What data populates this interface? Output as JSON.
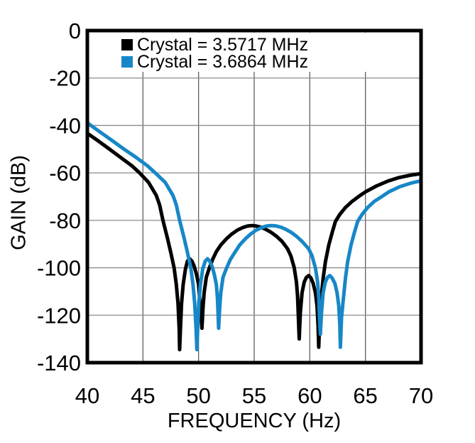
{
  "colors": {
    "background": "#ffffff",
    "frame": "#000000",
    "grid_vertical": "#5f5f5f",
    "grid_horizontal": "#8c8c8c",
    "series_black": "#000000",
    "series_blue": "#1787C7"
  },
  "chart_data": {
    "type": "line",
    "title": "",
    "xlabel": "FREQUENCY (Hz)",
    "ylabel": "GAIN (dB)",
    "xlim": [
      40,
      70
    ],
    "ylim": [
      -140,
      0
    ],
    "xticks": [
      40,
      45,
      50,
      55,
      60,
      65,
      70
    ],
    "yticks": [
      0,
      -20,
      -40,
      -60,
      -80,
      -100,
      -120,
      -140
    ],
    "grid": true,
    "legend_position": "top-left",
    "series": [
      {
        "name": "Crystal = 3.5717 MHz",
        "color": "#000000",
        "points": [
          [
            40.0,
            -43.3
          ],
          [
            41.0,
            -46.6
          ],
          [
            42.0,
            -50.0
          ],
          [
            43.0,
            -53.5
          ],
          [
            44.0,
            -57.0
          ],
          [
            44.7,
            -60.0
          ],
          [
            45.5,
            -64.0
          ],
          [
            46.2,
            -69.5
          ],
          [
            46.5,
            -73.5
          ],
          [
            46.8,
            -80.0
          ],
          [
            47.2,
            -87.5
          ],
          [
            47.5,
            -93.5
          ],
          [
            47.8,
            -100.0
          ],
          [
            48.0,
            -107.0
          ],
          [
            48.15,
            -115.0
          ],
          [
            48.26,
            -126.0
          ],
          [
            48.3,
            -134.5
          ],
          [
            48.37,
            -126.0
          ],
          [
            48.47,
            -115.0
          ],
          [
            48.62,
            -107.0
          ],
          [
            48.82,
            -100.5
          ],
          [
            49.0,
            -97.2
          ],
          [
            49.2,
            -96.2
          ],
          [
            49.4,
            -97.2
          ],
          [
            49.6,
            -99.3
          ],
          [
            49.8,
            -102.5
          ],
          [
            50.0,
            -107.0
          ],
          [
            50.1,
            -113.0
          ],
          [
            50.24,
            -120.0
          ],
          [
            50.3,
            -125.5
          ],
          [
            50.4,
            -117.0
          ],
          [
            50.5,
            -110.5
          ],
          [
            50.7,
            -104.0
          ],
          [
            50.95,
            -100.3
          ],
          [
            51.25,
            -96.6
          ],
          [
            51.6,
            -93.2
          ],
          [
            52.0,
            -90.4
          ],
          [
            52.5,
            -87.8
          ],
          [
            53.0,
            -85.7
          ],
          [
            53.5,
            -84.1
          ],
          [
            54.0,
            -83.0
          ],
          [
            54.4,
            -82.4
          ],
          [
            54.8,
            -82.2
          ],
          [
            55.2,
            -82.4
          ],
          [
            55.6,
            -82.9
          ],
          [
            56.0,
            -83.7
          ],
          [
            56.5,
            -85.0
          ],
          [
            57.0,
            -86.7
          ],
          [
            57.5,
            -88.9
          ],
          [
            58.0,
            -92.0
          ],
          [
            58.3,
            -95.0
          ],
          [
            58.6,
            -100.0
          ],
          [
            58.8,
            -106.0
          ],
          [
            58.9,
            -112.0
          ],
          [
            58.98,
            -122.0
          ],
          [
            59.05,
            -130.0
          ],
          [
            59.15,
            -119.0
          ],
          [
            59.3,
            -110.5
          ],
          [
            59.5,
            -106.0
          ],
          [
            59.7,
            -104.0
          ],
          [
            59.9,
            -103.3
          ],
          [
            60.1,
            -104.3
          ],
          [
            60.3,
            -106.5
          ],
          [
            60.5,
            -110.5
          ],
          [
            60.65,
            -116.0
          ],
          [
            60.74,
            -124.0
          ],
          [
            60.8,
            -133.5
          ],
          [
            60.9,
            -121.0
          ],
          [
            61.0,
            -114.0
          ],
          [
            61.2,
            -104.5
          ],
          [
            61.4,
            -97.5
          ],
          [
            61.7,
            -90.5
          ],
          [
            62.0,
            -85.3
          ],
          [
            62.3,
            -80.5
          ],
          [
            62.7,
            -77.5
          ],
          [
            63.2,
            -74.6
          ],
          [
            63.8,
            -72.0
          ],
          [
            64.4,
            -69.9
          ],
          [
            65.0,
            -68.0
          ],
          [
            66.0,
            -65.5
          ],
          [
            67.0,
            -63.5
          ],
          [
            68.0,
            -62.0
          ],
          [
            69.0,
            -61.0
          ],
          [
            70.0,
            -60.3
          ]
        ]
      },
      {
        "name": "Crystal = 3.6864 MHz",
        "color": "#1787C7",
        "points": [
          [
            40.0,
            -38.9
          ],
          [
            41.3,
            -43.3
          ],
          [
            42.3,
            -46.6
          ],
          [
            43.3,
            -50.0
          ],
          [
            44.4,
            -53.5
          ],
          [
            45.4,
            -57.0
          ],
          [
            46.1,
            -60.0
          ],
          [
            47.0,
            -64.0
          ],
          [
            47.7,
            -69.5
          ],
          [
            48.0,
            -73.5
          ],
          [
            48.3,
            -80.0
          ],
          [
            48.7,
            -87.5
          ],
          [
            49.0,
            -93.5
          ],
          [
            49.3,
            -100.0
          ],
          [
            49.5,
            -107.0
          ],
          [
            49.65,
            -115.0
          ],
          [
            49.78,
            -126.0
          ],
          [
            49.85,
            -134.5
          ],
          [
            49.92,
            -126.0
          ],
          [
            50.02,
            -115.0
          ],
          [
            50.17,
            -107.0
          ],
          [
            50.37,
            -100.5
          ],
          [
            50.6,
            -97.2
          ],
          [
            50.8,
            -96.2
          ],
          [
            51.0,
            -97.2
          ],
          [
            51.2,
            -99.3
          ],
          [
            51.4,
            -102.5
          ],
          [
            51.6,
            -107.0
          ],
          [
            51.7,
            -113.0
          ],
          [
            51.76,
            -120.0
          ],
          [
            51.8,
            -125.5
          ],
          [
            51.9,
            -117.0
          ],
          [
            52.0,
            -110.5
          ],
          [
            52.2,
            -104.0
          ],
          [
            52.5,
            -100.3
          ],
          [
            52.85,
            -96.6
          ],
          [
            53.3,
            -93.2
          ],
          [
            53.7,
            -90.4
          ],
          [
            54.2,
            -87.8
          ],
          [
            54.7,
            -85.7
          ],
          [
            55.2,
            -84.1
          ],
          [
            55.7,
            -83.0
          ],
          [
            56.1,
            -82.4
          ],
          [
            56.6,
            -82.2
          ],
          [
            57.0,
            -82.4
          ],
          [
            57.4,
            -82.9
          ],
          [
            57.8,
            -83.7
          ],
          [
            58.3,
            -85.0
          ],
          [
            58.8,
            -86.7
          ],
          [
            59.3,
            -88.9
          ],
          [
            59.9,
            -92.0
          ],
          [
            60.2,
            -95.0
          ],
          [
            60.5,
            -100.0
          ],
          [
            60.7,
            -106.0
          ],
          [
            60.8,
            -112.0
          ],
          [
            60.88,
            -122.0
          ],
          [
            60.95,
            -128.0
          ],
          [
            61.05,
            -119.0
          ],
          [
            61.2,
            -110.5
          ],
          [
            61.4,
            -106.0
          ],
          [
            61.6,
            -104.0
          ],
          [
            61.8,
            -103.3
          ],
          [
            62.0,
            -104.3
          ],
          [
            62.25,
            -106.5
          ],
          [
            62.45,
            -110.5
          ],
          [
            62.6,
            -116.0
          ],
          [
            62.7,
            -124.0
          ],
          [
            62.75,
            -133.5
          ],
          [
            62.85,
            -121.0
          ],
          [
            63.0,
            -114.0
          ],
          [
            63.2,
            -104.5
          ],
          [
            63.4,
            -97.5
          ],
          [
            63.7,
            -90.5
          ],
          [
            64.0,
            -85.3
          ],
          [
            64.3,
            -80.5
          ],
          [
            64.7,
            -77.5
          ],
          [
            65.2,
            -74.6
          ],
          [
            65.8,
            -72.0
          ],
          [
            66.5,
            -69.9
          ],
          [
            67.1,
            -68.0
          ],
          [
            68.1,
            -65.8
          ],
          [
            69.1,
            -64.3
          ],
          [
            70.0,
            -63.3
          ]
        ]
      }
    ]
  }
}
